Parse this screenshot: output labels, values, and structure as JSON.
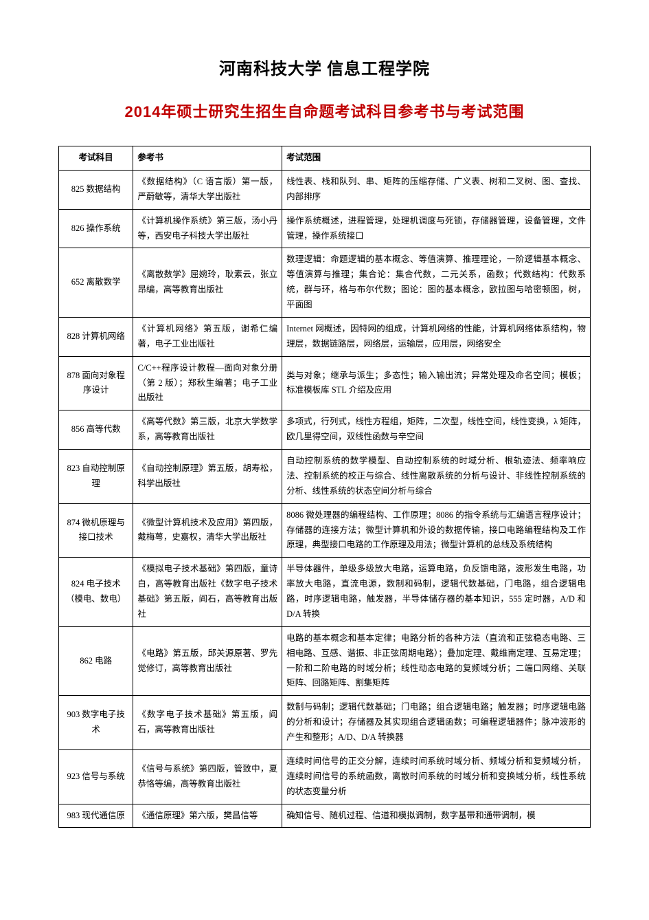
{
  "header": {
    "line1": "河南科技大学 信息工程学院",
    "year": "2014",
    "line2_rest": "年硕士研究生招生自命题考试科目参考书与考试范围"
  },
  "columns": {
    "subject": "考试科目",
    "book": "参考书",
    "scope": "考试范围"
  },
  "rows": [
    {
      "subject": "825 数据结构",
      "book": "《数据结构》（C 语言版）第一版，严蔚敏等，清华大学出版社",
      "scope": "线性表、栈和队列、串、矩阵的压缩存储、广义表、树和二叉树、图、查找、内部排序"
    },
    {
      "subject": "826 操作系统",
      "book": "《计算机操作系统》第三版，汤小丹等，西安电子科技大学出版社",
      "scope": "操作系统概述，进程管理，处理机调度与死锁，存储器管理，设备管理，文件管理，操作系统接口"
    },
    {
      "subject": "652 离散数学",
      "book": "《离散数学》屈婉玲，耿素云，张立昂编，高等教育出版社",
      "scope": "数理逻辑：命题逻辑的基本概念、等值演算、推理理论，一阶逻辑基本概念、等值演算与推理；集合论：集合代数，二元关系，函数；代数结构：代数系统，群与环，格与布尔代数；图论：图的基本概念，欧拉图与哈密顿图，树，平面图"
    },
    {
      "subject": "828 计算机网络",
      "book": "《计算机网络》第五版，谢希仁编著，电子工业出版社",
      "scope": "Internet 网概述，因特网的组成，计算机网络的性能，计算机网络体系结构，物理层，数据链路层，网络层，运输层，应用层，网络安全"
    },
    {
      "subject": "878 面向对象程序设计",
      "book": "C/C++程序设计教程—面向对象分册（第 2 版）；郑秋生编著；电子工业出版社",
      "scope": "类与对象；继承与派生；多态性；输入输出流；异常处理及命名空间；模板；标准模板库 STL 介绍及应用"
    },
    {
      "subject": "856 高等代数",
      "book": "《高等代数》第三版，北京大学数学系，高等教育出版社",
      "scope": "多项式，行列式，线性方程组，矩阵，二次型，线性空间，线性变换，λ 矩阵，欧几里得空间，双线性函数与辛空间"
    },
    {
      "subject": "823 自动控制原理",
      "book": "《自动控制原理》第五版，胡寿松，科学出版社",
      "scope": "自动控制系统的数学模型、自动控制系统的时域分析、根轨迹法、频率响应法、控制系统的校正与综合、线性离散系统的分析与设计、非线性控制系统的分析、线性系统的状态空间分析与综合"
    },
    {
      "subject": "874 微机原理与接口技术",
      "book": "《微型计算机技术及应用》第四版，戴梅萼，史嘉权，清华大学出版社",
      "scope": "8086 微处理器的编程结构、工作原理；8086 的指令系统与汇编语言程序设计；存储器的连接方法；微型计算机和外设的数据传输，接口电路编程结构及工作原理，典型接口电路的工作原理及用法；微型计算机的总线及系统结构"
    },
    {
      "subject": "824 电子技术（模电、数电）",
      "book": "《模拟电子技术基础》第四版，童诗白，高等教育出版社《数字电子技术基础》第五版，阎石，高等教育出版社",
      "scope": "半导体器件，单级多级放大电路，运算电路，负反馈电路，波形发生电路，功率放大电路，直流电源，数制和码制，逻辑代数基础，门电路，组合逻辑电路，时序逻辑电路，触发器，半导体储存器的基本知识，555 定时器，A/D 和 D/A 转换"
    },
    {
      "subject": "862 电路",
      "book": "《电路》第五版，邱关源原著、罗先觉修订，高等教育出版社",
      "scope": "电路的基本概念和基本定律；电路分析的各种方法（直流和正弦稳态电路、三相电路、互感、谐振、非正弦周期电路）；叠加定理、戴维南定理、互易定理；一阶和二阶电路的时域分析；线性动态电路的复频域分析；二端口网络、关联矩阵、回路矩阵、割集矩阵"
    },
    {
      "subject": "903 数字电子技术",
      "book": "《数字电子技术基础》第五版，阎石，高等教育出版社",
      "scope": "数制与码制；逻辑代数基础；门电路；组合逻辑电路；触发器；时序逻辑电路的分析和设计；存储器及其实现组合逻辑函数；可编程逻辑器件；脉冲波形的产生和整形；A/D、D/A 转换器"
    },
    {
      "subject": "923 信号与系统",
      "book": "《信号与系统》第四版，管致中，夏恭恪等编，高等教育出版社",
      "scope": "连续时间信号的正交分解，连续时间系统时域分析、频域分析和复频域分析，连续时间信号的系统函数，离散时间系统的时域分析和变换域分析，线性系统的状态变量分析"
    },
    {
      "subject": "983 现代通信原",
      "book": "《通信原理》第六版，樊昌信等",
      "scope": "确知信号、随机过程、信道和模拟调制，数字基带和通带调制，模"
    }
  ]
}
